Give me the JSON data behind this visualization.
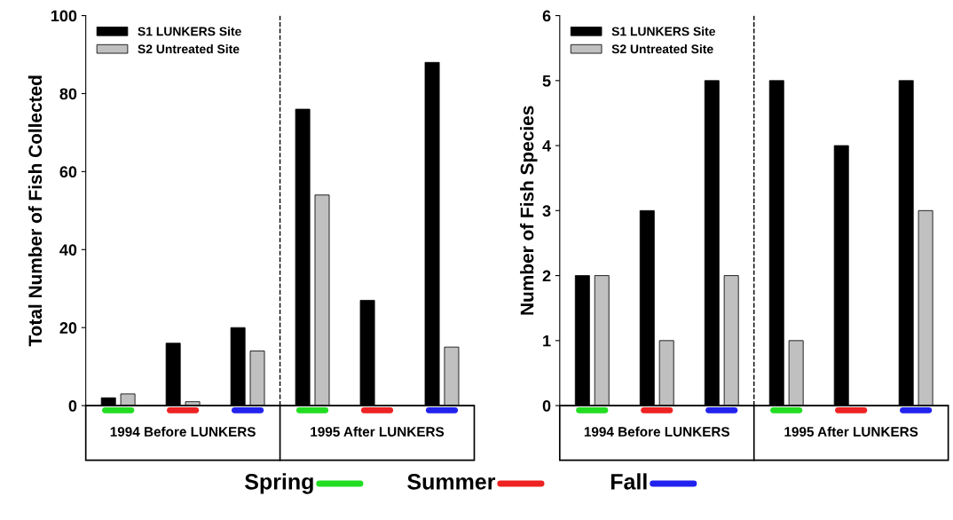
{
  "chart_data": [
    {
      "type": "bar",
      "ylabel": "Total Number of Fish Collected",
      "categories": [
        null,
        null,
        null,
        null,
        null,
        null
      ],
      "series": [
        {
          "name": "S1 LUNKERS Site",
          "color": "#000000",
          "values": [
            2,
            16,
            20,
            76,
            27,
            88
          ]
        },
        {
          "name": "S2 Untreated Site",
          "color": "#c0c0c0",
          "values": [
            3,
            1,
            14,
            54,
            null,
            15
          ]
        }
      ],
      "ylim": [
        0,
        100
      ],
      "yticks": [
        0,
        20,
        40,
        60,
        80,
        100
      ],
      "grid": false,
      "legend": "top left",
      "annotations": [
        "1994 Before LUNKERS",
        "1995 After LUNKERS",
        "Spring",
        "Summer",
        "Fall"
      ]
    },
    {
      "type": "bar",
      "ylabel": "Number of Fish Species",
      "categories": [
        null,
        null,
        null,
        null,
        null,
        null
      ],
      "series": [
        {
          "name": "S1 LUNKERS Site",
          "color": "#000000",
          "values": [
            2,
            3,
            5,
            5,
            4,
            5
          ]
        },
        {
          "name": "S2 Untreated Site",
          "color": "#c0c0c0",
          "values": [
            2,
            1,
            2,
            1,
            null,
            3
          ]
        }
      ],
      "ylim": [
        0,
        6
      ],
      "yticks": [
        0,
        1,
        2,
        3,
        4,
        5,
        6
      ],
      "grid": false,
      "legend": "top left",
      "annotations": [
        "1994 Before LUNKERS",
        "1995 After LUNKERS"
      ]
    }
  ]
}
